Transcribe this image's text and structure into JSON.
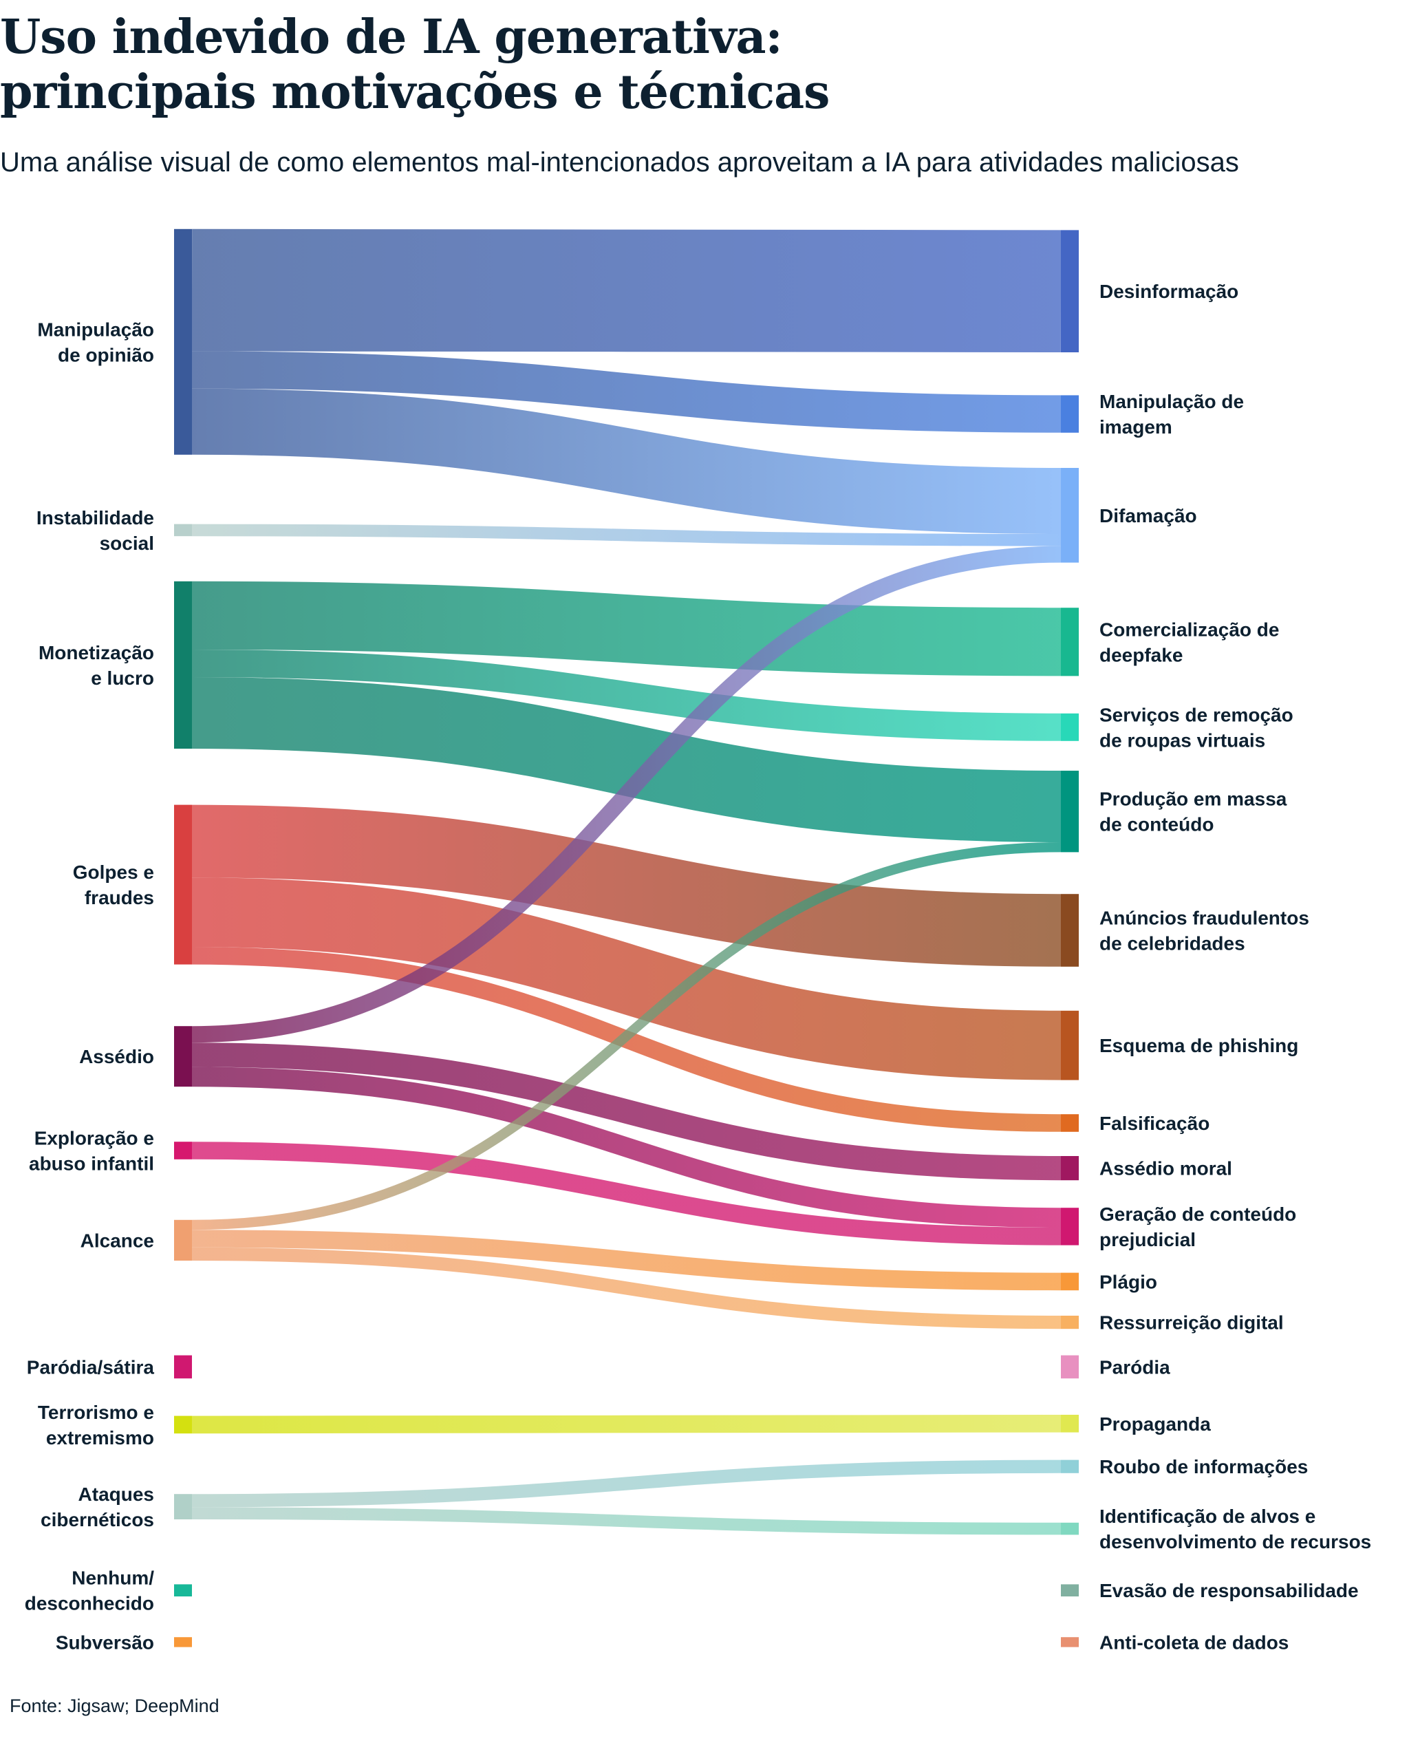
{
  "title_lines": [
    "Uso indevido de IA generativa:",
    "principais motivações e técnicas"
  ],
  "subtitle": "Uma análise visual de como elementos mal-intencionados aproveitam a IA para atividades maliciosas",
  "source": "Fonte: Jigsaw; DeepMind",
  "chart_data": {
    "type": "sankey",
    "title": "Uso indevido de IA generativa: principais motivações e técnicas",
    "note": "flow values are relative estimates read from band widths; no values printed",
    "sources": [
      {
        "id": "manip_opiniao",
        "label": [
          "Manipulação",
          "de opinião"
        ],
        "color": "#3a5a9a"
      },
      {
        "id": "instabilidade",
        "label": [
          "Instabilidade",
          "social"
        ],
        "color": "#b8d0cc"
      },
      {
        "id": "monetizacao",
        "label": [
          "Monetização",
          "e lucro"
        ],
        "color": "#11806a"
      },
      {
        "id": "golpes",
        "label": [
          "Golpes e",
          "fraudes"
        ],
        "color": "#d94040"
      },
      {
        "id": "assedio",
        "label": [
          "Assédio"
        ],
        "color": "#7a1050"
      },
      {
        "id": "exploracao",
        "label": [
          "Exploração e",
          "abuso infantil"
        ],
        "color": "#d6186e"
      },
      {
        "id": "alcance",
        "label": [
          "Alcance"
        ],
        "color": "#f0a070"
      },
      {
        "id": "parodia_satira",
        "label": [
          "Paródia/sátira"
        ],
        "color": "#d01870"
      },
      {
        "id": "terrorismo",
        "label": [
          "Terrorismo e",
          "extremismo"
        ],
        "color": "#d4e010"
      },
      {
        "id": "ataques",
        "label": [
          "Ataques",
          "cibernéticos"
        ],
        "color": "#b0d0c8"
      },
      {
        "id": "nenhum",
        "label": [
          "Nenhum/",
          "desconhecido"
        ],
        "color": "#18b898"
      },
      {
        "id": "subversao",
        "label": [
          "Subversão"
        ],
        "color": "#f89838"
      }
    ],
    "targets": [
      {
        "id": "desinformacao",
        "label": [
          "Desinformação"
        ],
        "color": "#4466c4"
      },
      {
        "id": "manip_imagem",
        "label": [
          "Manipulação de",
          "imagem"
        ],
        "color": "#4a80e0"
      },
      {
        "id": "difamacao",
        "label": [
          "Difamação"
        ],
        "color": "#7ab0f8"
      },
      {
        "id": "comercializacao",
        "label": [
          "Comercialização de",
          "deepfake"
        ],
        "color": "#18b890"
      },
      {
        "id": "servicos_remocao",
        "label": [
          "Serviços de remoção",
          "de roupas virtuais"
        ],
        "color": "#28d8b8"
      },
      {
        "id": "producao_massa",
        "label": [
          "Produção em massa",
          "de conteúdo"
        ],
        "color": "#00957f"
      },
      {
        "id": "anuncios",
        "label": [
          "Anúncios fraudulentos",
          "de celebridades"
        ],
        "color": "#8a4a20"
      },
      {
        "id": "phishing",
        "label": [
          "Esquema de phishing"
        ],
        "color": "#b85520"
      },
      {
        "id": "falsificacao",
        "label": [
          "Falsificação"
        ],
        "color": "#e06a20"
      },
      {
        "id": "assedio_moral",
        "label": [
          "Assédio moral"
        ],
        "color": "#a01860"
      },
      {
        "id": "geracao_prejudicial",
        "label": [
          "Geração de conteúdo",
          "prejudicial"
        ],
        "color": "#d01870"
      },
      {
        "id": "plagio",
        "label": [
          "Plágio"
        ],
        "color": "#f89838"
      },
      {
        "id": "ressurreicao",
        "label": [
          "Ressurreição digital"
        ],
        "color": "#f8b060"
      },
      {
        "id": "parodia",
        "label": [
          "Paródia"
        ],
        "color": "#e890c0"
      },
      {
        "id": "propaganda",
        "label": [
          "Propaganda"
        ],
        "color": "#e0e850"
      },
      {
        "id": "roubo",
        "label": [
          "Roubo de informações"
        ],
        "color": "#90d0d8"
      },
      {
        "id": "identificacao",
        "label": [
          "Identificação de alvos e",
          "desenvolvimento de recursos"
        ],
        "color": "#80d8c0"
      },
      {
        "id": "evasao",
        "label": [
          "Evasão de responsabilidade"
        ],
        "color": "#80b0a0"
      },
      {
        "id": "anticoleta",
        "label": [
          "Anti-coleta de dados"
        ],
        "color": "#e89070"
      }
    ],
    "links": [
      {
        "source": "manip_opiniao",
        "target": "desinformacao",
        "value": 111
      },
      {
        "source": "manip_opiniao",
        "target": "manip_imagem",
        "value": 34
      },
      {
        "source": "manip_opiniao",
        "target": "difamacao",
        "value": 60
      },
      {
        "source": "instabilidade",
        "target": "difamacao",
        "value": 11
      },
      {
        "source": "monetizacao",
        "target": "comercializacao",
        "value": 62
      },
      {
        "source": "monetizacao",
        "target": "servicos_remocao",
        "value": 25
      },
      {
        "source": "monetizacao",
        "target": "producao_massa",
        "value": 65
      },
      {
        "source": "golpes",
        "target": "anuncios",
        "value": 66
      },
      {
        "source": "golpes",
        "target": "phishing",
        "value": 63
      },
      {
        "source": "golpes",
        "target": "falsificacao",
        "value": 16
      },
      {
        "source": "assedio",
        "target": "difamacao",
        "value": 15
      },
      {
        "source": "assedio",
        "target": "assedio_moral",
        "value": 22
      },
      {
        "source": "assedio",
        "target": "geracao_prejudicial",
        "value": 18
      },
      {
        "source": "exploracao",
        "target": "geracao_prejudicial",
        "value": 16
      },
      {
        "source": "alcance",
        "target": "producao_massa",
        "value": 9
      },
      {
        "source": "alcance",
        "target": "plagio",
        "value": 16
      },
      {
        "source": "alcance",
        "target": "ressurreicao",
        "value": 12
      },
      {
        "source": "parodia_satira",
        "target": "parodia",
        "value": 21
      },
      {
        "source": "terrorismo",
        "target": "propaganda",
        "value": 16
      },
      {
        "source": "ataques",
        "target": "roubo",
        "value": 12
      },
      {
        "source": "ataques",
        "target": "identificacao",
        "value": 11
      },
      {
        "source": "nenhum",
        "target": "evasao",
        "value": 11
      },
      {
        "source": "subversao",
        "target": "anticoleta",
        "value": 9
      }
    ]
  }
}
